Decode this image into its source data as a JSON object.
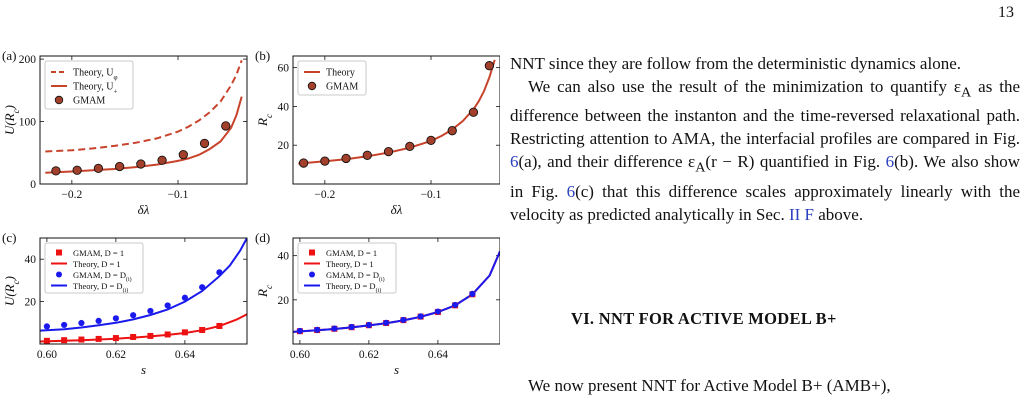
{
  "page_number": "13",
  "figure": {
    "panels": [
      {
        "id": "a",
        "label": "(a)",
        "ylabel": "U(R_c)",
        "xlabel": "δλ",
        "xlim": [
          -0.23,
          -0.035
        ],
        "ylim": [
          0,
          205
        ],
        "xticks": [
          -0.2,
          -0.1
        ],
        "xtick_labels": [
          "−0.2",
          "−0.1"
        ],
        "yticks": [
          0,
          100,
          200
        ],
        "ytick_labels": [
          "0",
          "100",
          "200"
        ],
        "legend": [
          "Theory, U_φ",
          "Theory, U_+",
          "GMAM"
        ],
        "series": [
          {
            "name": "Theory, U_φ",
            "kind": "dashed",
            "color": "#c8432b",
            "x": [
              -0.225,
              -0.2,
              -0.18,
              -0.16,
              -0.14,
              -0.12,
              -0.1,
              -0.09,
              -0.08,
              -0.07,
              -0.06,
              -0.05,
              -0.045,
              -0.04
            ],
            "y": [
              52,
              54,
              57,
              61,
              66,
              73,
              84,
              92,
              102,
              115,
              132,
              158,
              175,
              198
            ]
          },
          {
            "name": "Theory, U_+",
            "kind": "solid",
            "color": "#c8432b",
            "x": [
              -0.225,
              -0.2,
              -0.18,
              -0.16,
              -0.14,
              -0.12,
              -0.1,
              -0.09,
              -0.08,
              -0.07,
              -0.06,
              -0.05,
              -0.045,
              -0.04
            ],
            "y": [
              18,
              20,
              22,
              24,
              27,
              31,
              37,
              41,
              47,
              56,
              68,
              90,
              110,
              140
            ]
          },
          {
            "name": "GMAM",
            "kind": "marker",
            "color": "#a3402b",
            "x": [
              -0.215,
              -0.195,
              -0.175,
              -0.155,
              -0.135,
              -0.115,
              -0.095,
              -0.075,
              -0.055
            ],
            "y": [
              21,
              22,
              25,
              28,
              32,
              38,
              47,
              65,
              93
            ]
          }
        ]
      },
      {
        "id": "b",
        "label": "(b)",
        "ylabel": "R_c",
        "xlabel": "δλ",
        "xlim": [
          -0.23,
          -0.035
        ],
        "ylim": [
          0,
          66
        ],
        "xticks": [
          -0.2,
          -0.1
        ],
        "xtick_labels": [
          "−0.2",
          "−0.1"
        ],
        "yticks": [
          20,
          40,
          60
        ],
        "ytick_labels": [
          "20",
          "40",
          "60"
        ],
        "legend": [
          "Theory",
          "GMAM"
        ],
        "series": [
          {
            "name": "Theory",
            "kind": "solid",
            "color": "#c8432b",
            "x": [
              -0.225,
              -0.2,
              -0.18,
              -0.16,
              -0.14,
              -0.12,
              -0.1,
              -0.09,
              -0.08,
              -0.07,
              -0.06,
              -0.055,
              -0.05,
              -0.045,
              -0.04
            ],
            "y": [
              10.5,
              11.7,
              12.8,
              14.3,
              16.2,
              18.7,
              22.2,
              24.8,
              28.1,
              32.5,
              38.5,
              42.7,
              48,
              55,
              64
            ]
          },
          {
            "name": "GMAM",
            "kind": "marker",
            "color": "#a3402b",
            "x": [
              -0.22,
              -0.2,
              -0.18,
              -0.16,
              -0.14,
              -0.12,
              -0.1,
              -0.08,
              -0.06,
              -0.045
            ],
            "y": [
              10.8,
              11.8,
              13.2,
              14.8,
              16.7,
              19.4,
              22.5,
              27.5,
              37,
              61
            ]
          }
        ]
      },
      {
        "id": "c",
        "label": "(c)",
        "ylabel": "U(R_c)",
        "xlabel": "s",
        "xlim": [
          0.598,
          0.658
        ],
        "ylim": [
          0,
          50
        ],
        "xticks": [
          0.6,
          0.62,
          0.64
        ],
        "xtick_labels": [
          "0.60",
          "0.62",
          "0.64"
        ],
        "yticks": [
          20,
          40
        ],
        "ytick_labels": [
          "20",
          "40"
        ],
        "legend": [
          "GMAM, D = 1",
          "Theory, D = 1",
          "GMAM, D = D_(i)",
          "Theory, D = D_(i)"
        ],
        "series": [
          {
            "name": "GMAM, D = 1",
            "kind": "square",
            "color": "#ee1111",
            "x": [
              0.6,
              0.605,
              0.61,
              0.615,
              0.62,
              0.625,
              0.63,
              0.635,
              0.64,
              0.645,
              0.65
            ],
            "y": [
              1.5,
              1.8,
              2.1,
              2.4,
              2.8,
              3.3,
              3.8,
              4.5,
              5.5,
              6.6,
              8.5
            ]
          },
          {
            "name": "Theory, D = 1",
            "kind": "solid",
            "color": "#ee1111",
            "x": [
              0.598,
              0.605,
              0.61,
              0.615,
              0.62,
              0.625,
              0.63,
              0.635,
              0.64,
              0.645,
              0.65,
              0.655,
              0.658
            ],
            "y": [
              1.2,
              1.5,
              1.8,
              2.1,
              2.5,
              3.0,
              3.6,
              4.3,
              5.2,
              6.5,
              8.5,
              11.5,
              14.0
            ]
          },
          {
            "name": "GMAM, D = D_(i)",
            "kind": "circle",
            "color": "#1a1aee",
            "x": [
              0.6,
              0.605,
              0.61,
              0.615,
              0.62,
              0.625,
              0.63,
              0.635,
              0.64,
              0.645,
              0.65
            ],
            "y": [
              8.3,
              9.0,
              9.9,
              10.9,
              12.1,
              13.6,
              15.6,
              18.2,
              21.8,
              26.8,
              33.8
            ]
          },
          {
            "name": "Theory, D = D_(i)",
            "kind": "solid",
            "color": "#1a1aee",
            "x": [
              0.598,
              0.605,
              0.61,
              0.615,
              0.62,
              0.625,
              0.63,
              0.635,
              0.64,
              0.645,
              0.65,
              0.653,
              0.656,
              0.658
            ],
            "y": [
              6.3,
              7.0,
              7.8,
              8.8,
              10,
              11.6,
              13.7,
              16.3,
              20,
              25,
              32,
              37,
              44,
              50
            ]
          }
        ]
      },
      {
        "id": "d",
        "label": "(d)",
        "ylabel": "R_c",
        "xlabel": "s",
        "xlim": [
          0.598,
          0.658
        ],
        "ylim": [
          0,
          48
        ],
        "xticks": [
          0.6,
          0.62,
          0.64
        ],
        "xtick_labels": [
          "0.60",
          "0.62",
          "0.64"
        ],
        "yticks": [
          20,
          40
        ],
        "ytick_labels": [
          "20",
          "40"
        ],
        "legend": [
          "GMAM, D = 1",
          "Theory, D = 1",
          "GMAM, D = D_(i)",
          "Theory, D = D_(i)"
        ],
        "series": [
          {
            "name": "GMAM, D = 1",
            "kind": "square",
            "color": "#ee1111",
            "x": [
              0.6,
              0.605,
              0.61,
              0.615,
              0.62,
              0.625,
              0.63,
              0.635,
              0.64,
              0.645,
              0.65
            ],
            "y": [
              5.8,
              6.3,
              6.9,
              7.6,
              8.5,
              9.5,
              10.8,
              12.4,
              14.5,
              17.5,
              22.5
            ]
          },
          {
            "name": "Theory, D = 1",
            "kind": "solid",
            "color": "#ee1111",
            "x": [
              0.598,
              0.605,
              0.61,
              0.615,
              0.62,
              0.625,
              0.63,
              0.635,
              0.64,
              0.645,
              0.65,
              0.655,
              0.658
            ],
            "y": [
              5.5,
              6.2,
              6.8,
              7.5,
              8.4,
              9.4,
              10.7,
              12.3,
              14.5,
              17.5,
              22.5,
              31,
              42
            ]
          },
          {
            "name": "GMAM, D = D_(i)",
            "kind": "circle",
            "color": "#1a1aee",
            "x": [
              0.6,
              0.605,
              0.61,
              0.615,
              0.62,
              0.625,
              0.63,
              0.635,
              0.64,
              0.645,
              0.65
            ],
            "y": [
              5.9,
              6.4,
              7.0,
              7.7,
              8.6,
              9.6,
              10.9,
              12.5,
              14.7,
              17.7,
              22.7
            ]
          },
          {
            "name": "Theory, D = D_(i)",
            "kind": "solid",
            "color": "#1a1aee",
            "x": [
              0.598,
              0.605,
              0.61,
              0.615,
              0.62,
              0.625,
              0.63,
              0.635,
              0.64,
              0.645,
              0.65,
              0.655,
              0.658
            ],
            "y": [
              5.5,
              6.2,
              6.8,
              7.5,
              8.4,
              9.4,
              10.7,
              12.3,
              14.5,
              17.5,
              22.5,
              31,
              42
            ]
          }
        ]
      }
    ]
  },
  "body": {
    "p1": "NNT since they are follow from the deterministic dynamics alone.",
    "p2_a": "We can also use the result of the minimization to quantify ε",
    "p2_b": " as the difference between the instanton and the time-reversed relaxational path. Restricting attention to AMA, the interfacial profiles are compared in Fig. ",
    "p2_ref1": "6",
    "p2_c": "(a), and their difference ε",
    "p2_d": "(r − R) quantified in Fig. ",
    "p2_ref2": "6",
    "p2_e": "(b). We also show in Fig. ",
    "p2_ref3": "6",
    "p2_f": "(c) that this difference scales approximately linearly with the velocity as predicted analytically in Sec. ",
    "p2_ref4": "II F",
    "p2_g": " above.",
    "sub_A": "A",
    "section_heading": "VI.   NNT FOR ACTIVE MODEL B+",
    "last_line": "We now present NNT for Active Model B+ (AMB+),"
  }
}
